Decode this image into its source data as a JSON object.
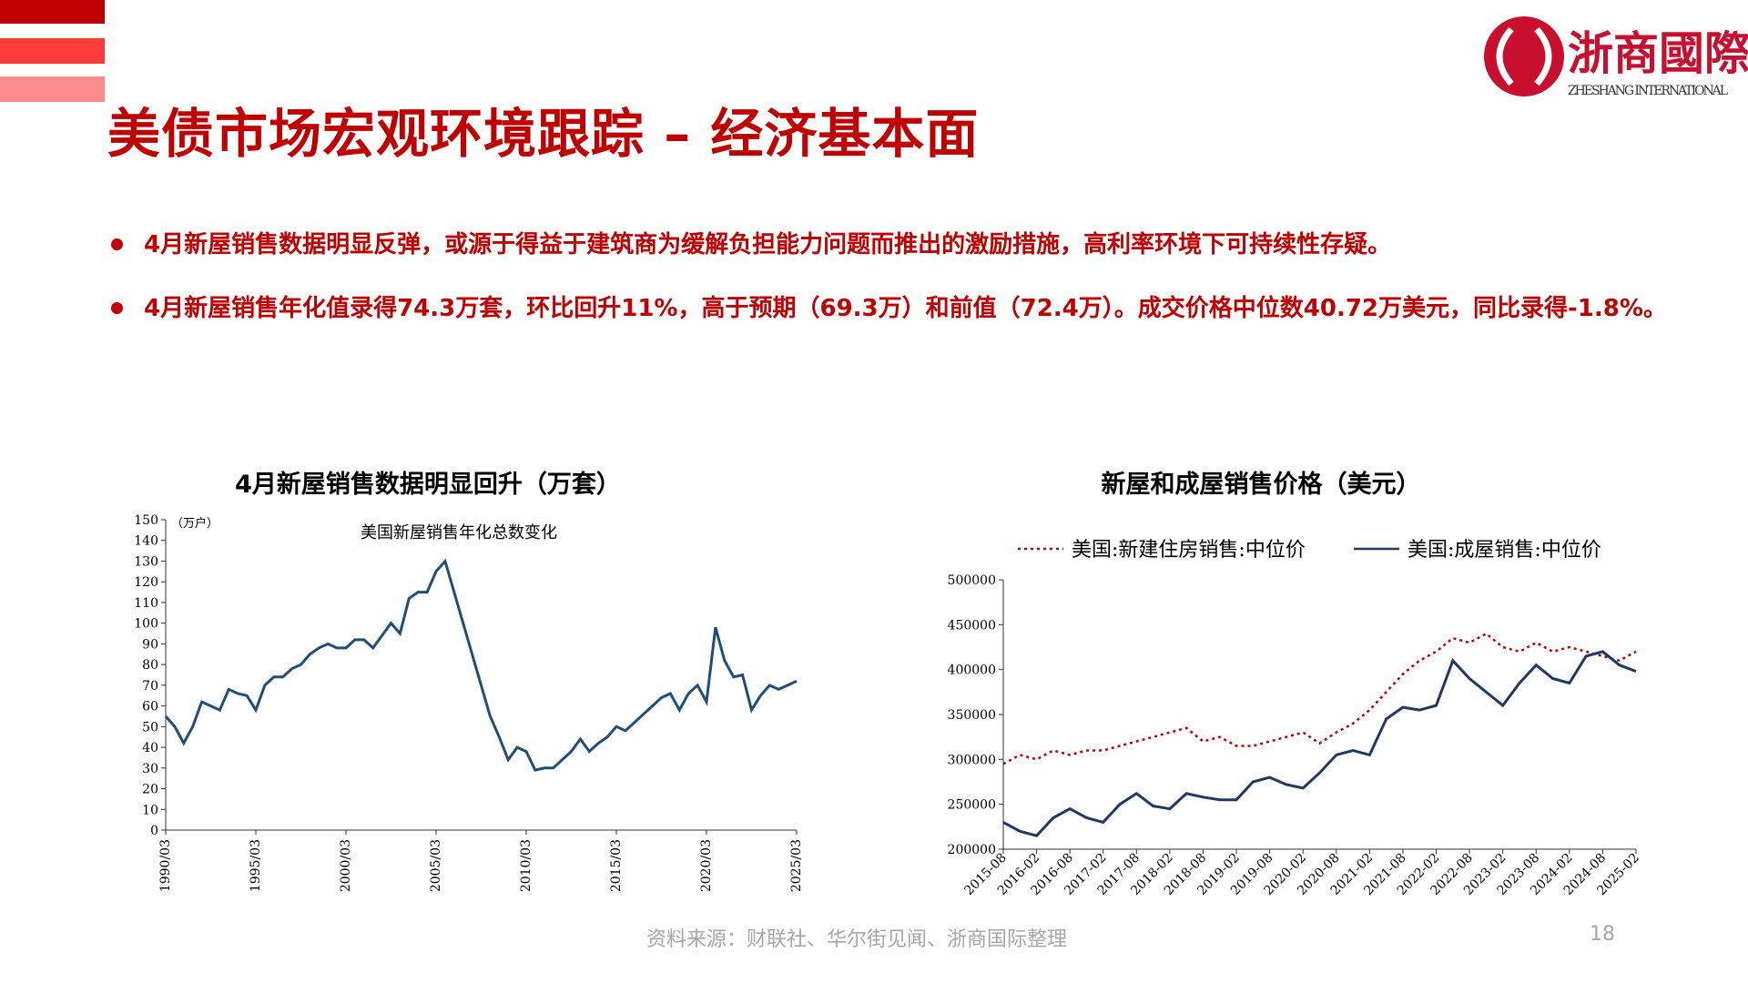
{
  "header": {
    "title": "美债市场宏观环境跟踪 – 经济基本面",
    "logo_cn": "浙商國際",
    "logo_en": "ZHESHANG INTERNATIONAL"
  },
  "bullets": [
    "4月新屋销售数据明显反弹，或源于得益于建筑商为缓解负担能力问题而推出的激励措施，高利率环境下可持续性存疑。",
    "4月新屋销售年化值录得74.3万套，环比回升11%，高于预期（69.3万）和前值（72.4万）。成交价格中位数40.72万美元，同比录得-1.8%。"
  ],
  "footer": {
    "source": "资料来源：财联社、华尔街见闻、浙商国际整理",
    "page": "18"
  },
  "chart_data": [
    {
      "type": "line",
      "title": "4月新屋销售数据明显回升（万套）",
      "unit_label": "（万户）",
      "annotation": "美国新屋销售年化总数变化",
      "color": "#1f4e79",
      "x": [
        "1990/03",
        "1990/09",
        "1991/03",
        "1991/09",
        "1992/03",
        "1992/09",
        "1993/03",
        "1993/09",
        "1994/03",
        "1994/09",
        "1995/03",
        "1995/09",
        "1996/03",
        "1996/09",
        "1997/03",
        "1997/09",
        "1998/03",
        "1998/09",
        "1999/03",
        "1999/09",
        "2000/03",
        "2000/09",
        "2001/03",
        "2001/09",
        "2002/03",
        "2002/09",
        "2003/03",
        "2003/09",
        "2004/03",
        "2004/09",
        "2005/03",
        "2005/09",
        "2006/03",
        "2006/09",
        "2007/03",
        "2007/09",
        "2008/03",
        "2008/09",
        "2009/03",
        "2009/09",
        "2010/03",
        "2010/09",
        "2011/03",
        "2011/09",
        "2012/03",
        "2012/09",
        "2013/03",
        "2013/09",
        "2014/03",
        "2014/09",
        "2015/03",
        "2015/09",
        "2016/03",
        "2016/09",
        "2017/03",
        "2017/09",
        "2018/03",
        "2018/09",
        "2019/03",
        "2019/09",
        "2020/03",
        "2020/09",
        "2021/03",
        "2021/09",
        "2022/03",
        "2022/09",
        "2023/03",
        "2023/09",
        "2024/03",
        "2024/09",
        "2025/03"
      ],
      "values": [
        55,
        50,
        42,
        50,
        62,
        60,
        58,
        68,
        66,
        65,
        58,
        70,
        74,
        74,
        78,
        80,
        85,
        88,
        90,
        88,
        88,
        92,
        92,
        88,
        94,
        100,
        95,
        112,
        115,
        115,
        125,
        130,
        115,
        100,
        85,
        70,
        55,
        45,
        34,
        40,
        38,
        29,
        30,
        30,
        34,
        38,
        44,
        38,
        42,
        45,
        50,
        48,
        52,
        56,
        60,
        64,
        66,
        58,
        66,
        70,
        62,
        98,
        82,
        74,
        75,
        58,
        65,
        70,
        68,
        70,
        72
      ],
      "xticks": [
        "1990/03",
        "1995/03",
        "2000/03",
        "2005/03",
        "2010/03",
        "2015/03",
        "2020/03",
        "2025/03"
      ],
      "ylim": [
        0,
        150
      ],
      "yticks": [
        0,
        10,
        20,
        30,
        40,
        50,
        60,
        70,
        80,
        90,
        100,
        110,
        120,
        130,
        140,
        150
      ]
    },
    {
      "type": "line",
      "title": "新屋和成屋销售价格（美元）",
      "x": [
        "2015-08",
        "2015-11",
        "2016-02",
        "2016-05",
        "2016-08",
        "2016-11",
        "2017-02",
        "2017-05",
        "2017-08",
        "2017-11",
        "2018-02",
        "2018-05",
        "2018-08",
        "2018-11",
        "2019-02",
        "2019-05",
        "2019-08",
        "2019-11",
        "2020-02",
        "2020-05",
        "2020-08",
        "2020-11",
        "2021-02",
        "2021-05",
        "2021-08",
        "2021-11",
        "2022-02",
        "2022-05",
        "2022-08",
        "2022-11",
        "2023-02",
        "2023-05",
        "2023-08",
        "2023-11",
        "2024-02",
        "2024-05",
        "2024-08",
        "2024-11",
        "2025-02"
      ],
      "series": [
        {
          "name": "美国:新建住房销售:中位价",
          "color": "#c00000",
          "dash": true,
          "values": [
            295000,
            305000,
            300000,
            310000,
            305000,
            310000,
            310000,
            315000,
            320000,
            325000,
            330000,
            335000,
            320000,
            325000,
            315000,
            315000,
            320000,
            325000,
            330000,
            318000,
            330000,
            340000,
            355000,
            375000,
            395000,
            410000,
            420000,
            435000,
            430000,
            440000,
            425000,
            420000,
            430000,
            420000,
            425000,
            420000,
            415000,
            410000,
            420000
          ]
        },
        {
          "name": "美国:成屋销售:中位价",
          "color": "#1f3864",
          "dash": false,
          "values": [
            230000,
            220000,
            215000,
            235000,
            245000,
            235000,
            230000,
            250000,
            262000,
            248000,
            245000,
            262000,
            258000,
            255000,
            255000,
            275000,
            280000,
            272000,
            268000,
            285000,
            305000,
            310000,
            305000,
            345000,
            358000,
            355000,
            360000,
            410000,
            390000,
            375000,
            360000,
            385000,
            405000,
            390000,
            385000,
            415000,
            420000,
            405000,
            398000
          ]
        }
      ],
      "xticks": [
        "2015-08",
        "2016-02",
        "2016-08",
        "2017-02",
        "2017-08",
        "2018-02",
        "2018-08",
        "2019-02",
        "2019-08",
        "2020-02",
        "2020-08",
        "2021-02",
        "2021-08",
        "2022-02",
        "2022-08",
        "2023-02",
        "2023-08",
        "2024-02",
        "2024-08",
        "2025-02"
      ],
      "ylim": [
        200000,
        500000
      ],
      "yticks": [
        200000,
        250000,
        300000,
        350000,
        400000,
        450000,
        500000
      ]
    }
  ]
}
